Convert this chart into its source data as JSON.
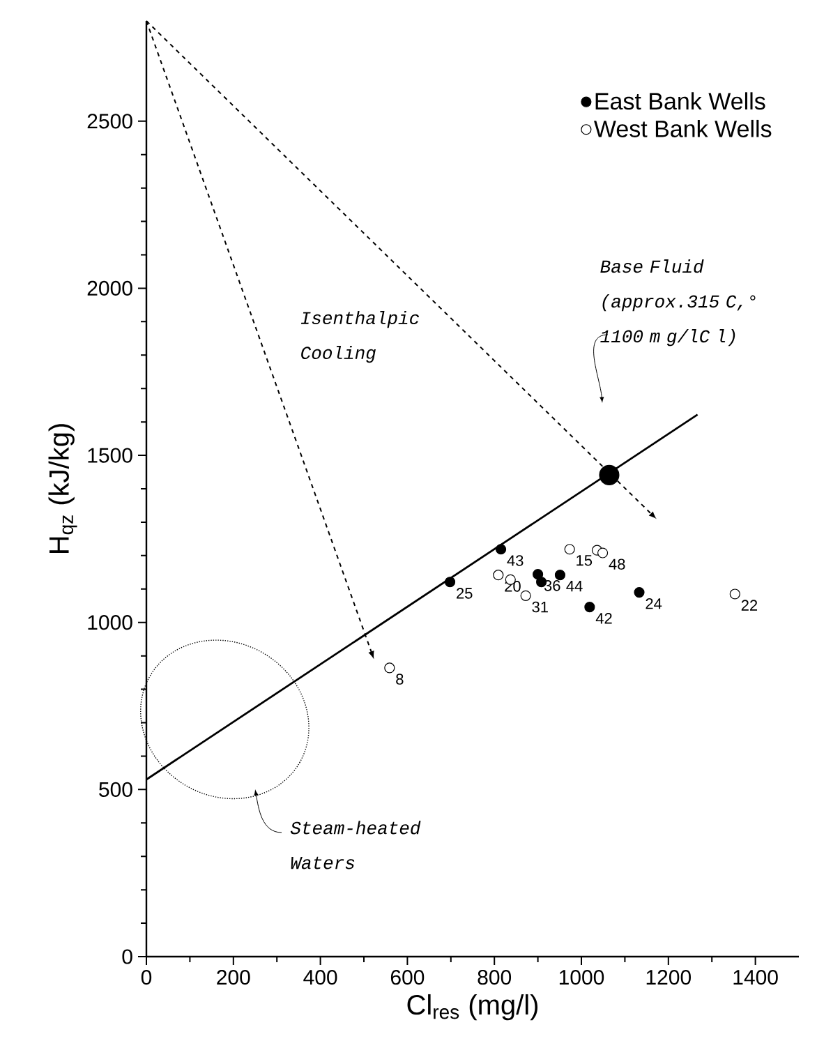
{
  "chart_data": {
    "type": "scatter",
    "xlabel": "Cl$_{res}$ (mg/l)",
    "ylabel": "H$_{qz}$ (kJ/kg)",
    "xlim": [
      0,
      1500
    ],
    "ylim": [
      0,
      2800
    ],
    "xticks": [
      0,
      200,
      400,
      600,
      800,
      1000,
      1200,
      1400
    ],
    "yticks": [
      0,
      500,
      1000,
      1500,
      2000,
      2500
    ],
    "legend": "top right",
    "marker": "circle",
    "grid": false,
    "series": [
      {
        "name": "East Bank Wells",
        "color": "#000000",
        "x": [
          698,
          815,
          900,
          908,
          951,
          1019,
          1133
        ],
        "values": [
          1121,
          1219,
          1144,
          1121,
          1142,
          1046,
          1090
        ]
      },
      {
        "name": "West Bank Wells",
        "color": "#ffffff",
        "x": [
          559,
          809,
          837,
          872,
          973,
          1036,
          1049,
          1353
        ],
        "values": [
          864,
          1142,
          1128,
          1080,
          1219,
          1216,
          1208,
          1085
        ]
      },
      {
        "type": "line",
        "marker": "none",
        "line_style": "solid",
        "color": "#000000",
        "x": [
          0,
          1267
        ],
        "values": [
          530,
          1622
        ]
      },
      {
        "color": "#000000",
        "x": [
          1064
        ],
        "values": [
          1441
        ]
      }
    ],
    "annotations": [
      "Base Fluid (approx.315 C,° 1100 m g/lC l)",
      "Isenthalpic Cooling",
      "Steam-heated Waters",
      {
        "text": "25",
        "x": 698,
        "y": 1121
      },
      {
        "text": "43",
        "x": 815,
        "y": 1219
      },
      {
        "text": "36",
        "x": 900,
        "y": 1144
      },
      {
        "text": "44",
        "x": 951,
        "y": 1142
      },
      {
        "text": "42",
        "x": 1019,
        "y": 1046
      },
      {
        "text": "24",
        "x": 1133,
        "y": 1090
      },
      {
        "text": "8",
        "x": 559,
        "y": 864
      },
      {
        "text": "20",
        "x": 809,
        "y": 1142
      },
      {
        "text": "31",
        "x": 872,
        "y": 1080
      },
      {
        "text": "15",
        "x": 973,
        "y": 1219
      },
      {
        "text": "48",
        "x": 1049,
        "y": 1208
      },
      {
        "text": "22",
        "x": 1353,
        "y": 1085
      }
    ]
  }
}
